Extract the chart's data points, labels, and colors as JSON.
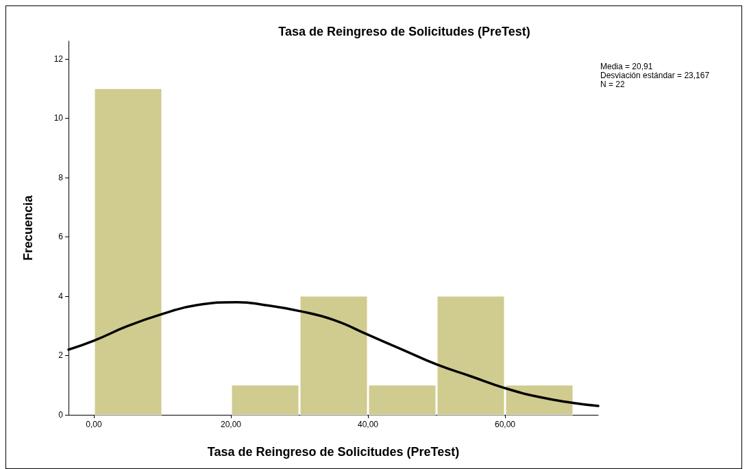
{
  "chart_data": {
    "type": "histogram",
    "title": "Tasa de Reingreso de Solicitudes (PreTest)",
    "xlabel": "Tasa de Reingreso de Solicitudes (PreTest)",
    "ylabel": "Frecuencia",
    "bins": [
      0,
      10,
      20,
      30,
      40,
      50,
      60,
      70
    ],
    "values": [
      11,
      0,
      1,
      4,
      1,
      4,
      1
    ],
    "color": "#d0cb8f",
    "series": [
      {
        "type": "line",
        "color": "#000000",
        "x": [
          -3.7,
          0,
          5,
          10,
          15,
          20.9,
          25,
          30,
          35,
          40,
          45,
          50,
          55,
          60,
          65,
          70,
          73.6
        ],
        "values": [
          2.2,
          2.5,
          3.0,
          3.4,
          3.7,
          3.8,
          3.7,
          3.5,
          3.2,
          2.7,
          2.2,
          1.7,
          1.3,
          0.9,
          0.6,
          0.4,
          0.3
        ]
      }
    ],
    "xlim": [
      -3.7,
      73.6
    ],
    "xticks": [
      {
        "value": 0,
        "label": "0,00"
      },
      {
        "value": 20,
        "label": "20,00"
      },
      {
        "value": 40,
        "label": "40,00"
      },
      {
        "value": 60,
        "label": "60,00"
      }
    ],
    "ylim": [
      0,
      12.6
    ],
    "yticks": [
      0,
      2,
      4,
      6,
      8,
      10,
      12
    ],
    "grid": false,
    "marker": "none",
    "line_style": "solid",
    "annotations": [
      "Media = 20,91\nDesviación estándar = 23,167\nN = 22"
    ]
  }
}
